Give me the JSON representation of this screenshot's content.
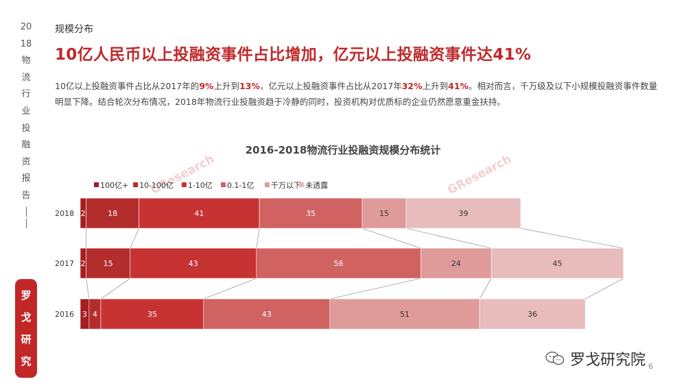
{
  "sidebar": {
    "chars": [
      "20",
      "18",
      "物",
      "流",
      "行",
      "业",
      "投",
      "融",
      "资",
      "报",
      "告"
    ],
    "badge": [
      "罗",
      "戈",
      "研",
      "究"
    ]
  },
  "section_label": "规模分布",
  "headline": "10亿人民币以上投融资事件占比增加，亿元以上投融资事件达41%",
  "description": {
    "p1": "10亿以上投融资事件占比从2017年的",
    "v1": "9%",
    "p2": "上升到",
    "v2": "13%",
    "p3": "，亿元以上投融资事件占比从2017年",
    "v3": "32%",
    "p4": "上升到",
    "v4": "41%",
    "p5": "。相对而言，千万级及以下小规模投融资事件数量明显下降。结合轮次分布情况，2018年物流行业投融资趋于冷静的同时，投资机构对优质标的企业仍然愿意重金扶持。"
  },
  "watermark": "GResearch",
  "chart_data": {
    "type": "bar",
    "orientation": "horizontal",
    "stacked": true,
    "title": "2016-2018物流行业投融资规模分布统计",
    "categories": [
      "2018",
      "2017",
      "2016"
    ],
    "legend_position": "top-left",
    "series": [
      {
        "name": "100亿+",
        "color": "#a51e22",
        "values": [
          2,
          2,
          3
        ]
      },
      {
        "name": "10-100亿",
        "color": "#b42d2d",
        "values": [
          18,
          15,
          4
        ]
      },
      {
        "name": "1-10亿",
        "color": "#c73333",
        "values": [
          41,
          43,
          35
        ]
      },
      {
        "name": "0.1-1亿",
        "color": "#d06262",
        "values": [
          35,
          56,
          43
        ]
      },
      {
        "name": "千万以下",
        "color": "#df9a9a",
        "values": [
          15,
          24,
          51
        ]
      },
      {
        "name": "未透露",
        "color": "#e8bcbc",
        "values": [
          39,
          45,
          36
        ]
      }
    ],
    "connector_lines": true,
    "grid": false
  },
  "footer": {
    "wechat_name": "罗戈研究院",
    "page_number": "6"
  }
}
